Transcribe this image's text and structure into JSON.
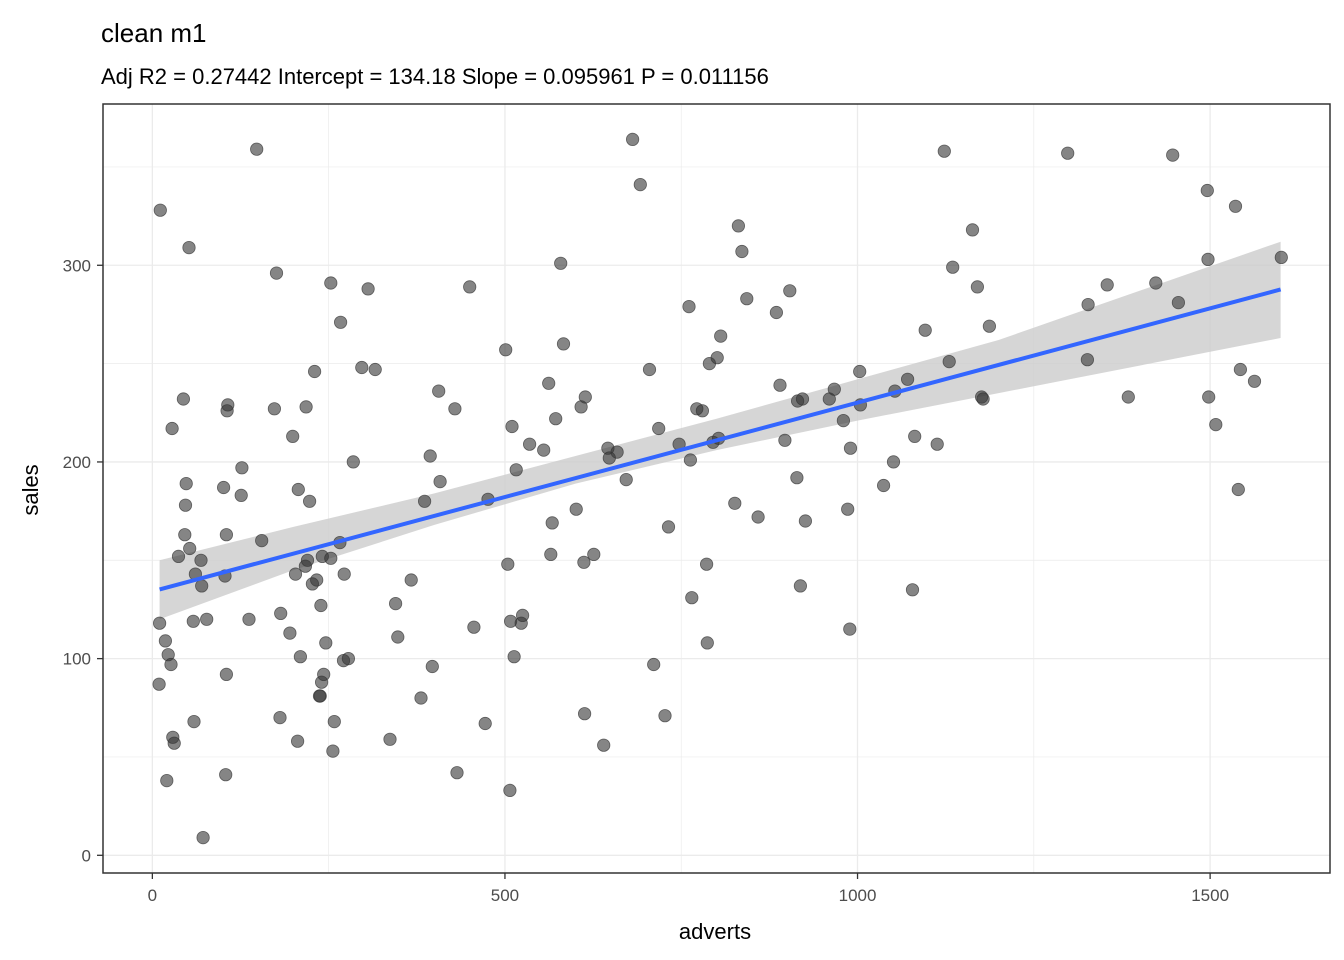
{
  "chart_data": {
    "type": "scatter",
    "title": "clean m1",
    "subtitle": "Adj R2 =  0.27442 Intercept = 134.18  Slope = 0.095961  P = 0.011156",
    "xlabel": "adverts",
    "ylabel": "sales",
    "xlim": [
      -70,
      1670
    ],
    "ylim": [
      -9,
      382
    ],
    "x_ticks": [
      0,
      500,
      1000,
      1500
    ],
    "y_ticks": [
      0,
      100,
      200,
      300
    ],
    "x_tick_labels": [
      "0",
      "500",
      "1000",
      "1500"
    ],
    "y_tick_labels": [
      "0",
      "100",
      "200",
      "300"
    ],
    "grid": true,
    "point_color": "#333333",
    "fit_line_color": "#3366ff",
    "ribbon_color": "#cccccc",
    "fit_line": {
      "x": [
        10.3,
        1600
      ],
      "y": [
        135.2,
        287.7
      ]
    },
    "confidence_band": {
      "x": [
        10.3,
        200,
        400,
        600,
        800,
        1000,
        1200,
        1400,
        1600
      ],
      "lower": [
        120,
        145,
        168,
        189,
        206,
        221,
        235,
        249,
        263
      ],
      "upper": [
        150,
        167,
        184,
        203,
        222,
        242,
        262,
        287,
        312
      ]
    },
    "points": [
      [
        10.3,
        118
      ],
      [
        9.5,
        87
      ],
      [
        11.2,
        328
      ],
      [
        18.5,
        109
      ],
      [
        20.5,
        38
      ],
      [
        22.5,
        102
      ],
      [
        26.5,
        97
      ],
      [
        28,
        217
      ],
      [
        29,
        60
      ],
      [
        31,
        57
      ],
      [
        37,
        152
      ],
      [
        44,
        232
      ],
      [
        46,
        163
      ],
      [
        47,
        178
      ],
      [
        48,
        189
      ],
      [
        52,
        309
      ],
      [
        53,
        156
      ],
      [
        58,
        119
      ],
      [
        59,
        68
      ],
      [
        61,
        143
      ],
      [
        69,
        150
      ],
      [
        70,
        137
      ],
      [
        72,
        9
      ],
      [
        77,
        120
      ],
      [
        101,
        187
      ],
      [
        103,
        142
      ],
      [
        104,
        41
      ],
      [
        105,
        92
      ],
      [
        106,
        226
      ],
      [
        107,
        229
      ],
      [
        105,
        163
      ],
      [
        126,
        183
      ],
      [
        127,
        197
      ],
      [
        137,
        120
      ],
      [
        148,
        359
      ],
      [
        155,
        160
      ],
      [
        173,
        227
      ],
      [
        176,
        296
      ],
      [
        181,
        70
      ],
      [
        182,
        123
      ],
      [
        195,
        113
      ],
      [
        199,
        213
      ],
      [
        203,
        143
      ],
      [
        206,
        58
      ],
      [
        207,
        186
      ],
      [
        210,
        101
      ],
      [
        217,
        147
      ],
      [
        218,
        228
      ],
      [
        220,
        150
      ],
      [
        223,
        180
      ],
      [
        227,
        138
      ],
      [
        230,
        246
      ],
      [
        233,
        140
      ],
      [
        237,
        81
      ],
      [
        238,
        81
      ],
      [
        239,
        127
      ],
      [
        240,
        88
      ],
      [
        241,
        152
      ],
      [
        243,
        92
      ],
      [
        246,
        108
      ],
      [
        253,
        151
      ],
      [
        253,
        291
      ],
      [
        256,
        53
      ],
      [
        258,
        68
      ],
      [
        266,
        159
      ],
      [
        267,
        271
      ],
      [
        271,
        99
      ],
      [
        272,
        143
      ],
      [
        278,
        100
      ],
      [
        285,
        200
      ],
      [
        297,
        248
      ],
      [
        306,
        288
      ],
      [
        316,
        247
      ],
      [
        337,
        59
      ],
      [
        345,
        128
      ],
      [
        348,
        111
      ],
      [
        367,
        140
      ],
      [
        381,
        80
      ],
      [
        386,
        180
      ],
      [
        394,
        203
      ],
      [
        397,
        96
      ],
      [
        406,
        236
      ],
      [
        408,
        190
      ],
      [
        429,
        227
      ],
      [
        432,
        42
      ],
      [
        450,
        289
      ],
      [
        456,
        116
      ],
      [
        472,
        67
      ],
      [
        476,
        181
      ],
      [
        501,
        257
      ],
      [
        504,
        148
      ],
      [
        507,
        33
      ],
      [
        508,
        119
      ],
      [
        510,
        218
      ],
      [
        513,
        101
      ],
      [
        516,
        196
      ],
      [
        523,
        118
      ],
      [
        525,
        122
      ],
      [
        535,
        209
      ],
      [
        555,
        206
      ],
      [
        562,
        240
      ],
      [
        565,
        153
      ],
      [
        567,
        169
      ],
      [
        572,
        222
      ],
      [
        579,
        301
      ],
      [
        583,
        260
      ],
      [
        601,
        176
      ],
      [
        608,
        228
      ],
      [
        612,
        149
      ],
      [
        613,
        72
      ],
      [
        614,
        233
      ],
      [
        626,
        153
      ],
      [
        640,
        56
      ],
      [
        646,
        207
      ],
      [
        648,
        202
      ],
      [
        659,
        205
      ],
      [
        672,
        191
      ],
      [
        681,
        364
      ],
      [
        692,
        341
      ],
      [
        705,
        247
      ],
      [
        711,
        97
      ],
      [
        718,
        217
      ],
      [
        727,
        71
      ],
      [
        732,
        167
      ],
      [
        747,
        209
      ],
      [
        761,
        279
      ],
      [
        763,
        201
      ],
      [
        765,
        131
      ],
      [
        772,
        227
      ],
      [
        780,
        226
      ],
      [
        786,
        148
      ],
      [
        787,
        108
      ],
      [
        790,
        250
      ],
      [
        795,
        210
      ],
      [
        801,
        253
      ],
      [
        803,
        212
      ],
      [
        806,
        264
      ],
      [
        826,
        179
      ],
      [
        831,
        320
      ],
      [
        836,
        307
      ],
      [
        843,
        283
      ],
      [
        859,
        172
      ],
      [
        885,
        276
      ],
      [
        890,
        239
      ],
      [
        897,
        211
      ],
      [
        904,
        287
      ],
      [
        914,
        192
      ],
      [
        915,
        231
      ],
      [
        919,
        137
      ],
      [
        922,
        232
      ],
      [
        926,
        170
      ],
      [
        960,
        232
      ],
      [
        967,
        237
      ],
      [
        980,
        221
      ],
      [
        986,
        176
      ],
      [
        989,
        115
      ],
      [
        990,
        207
      ],
      [
        1003,
        246
      ],
      [
        1004,
        229
      ],
      [
        1037,
        188
      ],
      [
        1051,
        200
      ],
      [
        1053,
        236
      ],
      [
        1071,
        242
      ],
      [
        1078,
        135
      ],
      [
        1081,
        213
      ],
      [
        1096,
        267
      ],
      [
        1113,
        209
      ],
      [
        1123,
        358
      ],
      [
        1130,
        251
      ],
      [
        1135,
        299
      ],
      [
        1163,
        318
      ],
      [
        1170,
        289
      ],
      [
        1176,
        233
      ],
      [
        1178,
        232
      ],
      [
        1187,
        269
      ],
      [
        1298,
        357
      ],
      [
        1326,
        252
      ],
      [
        1327,
        280
      ],
      [
        1354,
        290
      ],
      [
        1384,
        233
      ],
      [
        1423,
        291
      ],
      [
        1447,
        356
      ],
      [
        1455,
        281
      ],
      [
        1496,
        338
      ],
      [
        1497,
        303
      ],
      [
        1498,
        233
      ],
      [
        1508,
        219
      ],
      [
        1536,
        330
      ],
      [
        1540,
        186
      ],
      [
        1543,
        247
      ],
      [
        1563,
        241
      ],
      [
        1601,
        304
      ]
    ]
  }
}
